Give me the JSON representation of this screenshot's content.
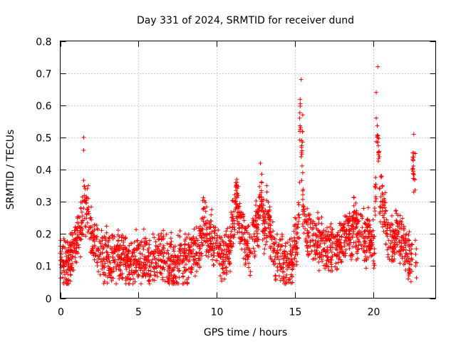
{
  "chart_data": {
    "type": "scatter",
    "title": "Day 331 of 2024, SRMTID for receiver dund",
    "xlabel": "GPS time / hours",
    "ylabel": "SRMTID / TECUs",
    "xlim": [
      0,
      24
    ],
    "ylim": [
      0,
      0.8
    ],
    "xticks": [
      0,
      5,
      10,
      15,
      20
    ],
    "xtick_labels": [
      "0",
      "5",
      "10",
      "15",
      "20"
    ],
    "yticks": [
      0,
      0.1,
      0.2,
      0.3,
      0.4,
      0.5,
      0.6,
      0.7,
      0.8
    ],
    "ytick_labels": [
      "0",
      "0.1",
      "0.2",
      "0.3",
      "0.4",
      "0.5",
      "0.6",
      "0.7",
      "0.8"
    ],
    "grid": true,
    "marker": "+",
    "color": "#ff0000",
    "series": [
      {
        "name": "SRMTID",
        "x": [
          0.0,
          0.1,
          0.2,
          0.3,
          0.4,
          0.5,
          0.6,
          0.7,
          0.8,
          0.9,
          1.0,
          1.1,
          1.2,
          1.3,
          1.4,
          1.5,
          1.5,
          1.5,
          1.6,
          1.6,
          1.7,
          1.7,
          1.8,
          1.8,
          1.9,
          2.0,
          2.1,
          2.2,
          2.3,
          2.4,
          2.5,
          2.6,
          2.7,
          2.8,
          2.9,
          3.0,
          3.1,
          3.2,
          3.3,
          3.4,
          3.5,
          3.6,
          3.7,
          3.8,
          3.9,
          4.0,
          4.1,
          4.2,
          4.3,
          4.4,
          4.5,
          4.6,
          4.7,
          4.8,
          4.9,
          5.0,
          5.1,
          5.2,
          5.3,
          5.4,
          5.5,
          5.6,
          5.7,
          5.8,
          5.9,
          6.0,
          6.1,
          6.2,
          6.3,
          6.4,
          6.5,
          6.6,
          6.7,
          6.8,
          6.9,
          7.0,
          7.1,
          7.2,
          7.3,
          7.4,
          7.5,
          7.6,
          7.7,
          7.8,
          7.9,
          8.0,
          8.1,
          8.2,
          8.3,
          8.4,
          8.5,
          8.6,
          8.7,
          8.8,
          8.9,
          9.0,
          9.1,
          9.2,
          9.3,
          9.4,
          9.5,
          9.6,
          9.7,
          9.8,
          9.9,
          10.0,
          10.1,
          10.2,
          10.3,
          10.4,
          10.5,
          10.6,
          10.7,
          10.8,
          10.9,
          11.0,
          11.1,
          11.2,
          11.3,
          11.4,
          11.5,
          11.6,
          11.7,
          11.8,
          11.9,
          12.0,
          12.1,
          12.2,
          12.3,
          12.4,
          12.5,
          12.6,
          12.7,
          12.8,
          12.9,
          13.0,
          13.1,
          13.2,
          13.3,
          13.4,
          13.5,
          13.6,
          13.7,
          13.8,
          13.9,
          14.0,
          14.1,
          14.2,
          14.3,
          14.4,
          14.5,
          14.6,
          14.7,
          14.8,
          14.9,
          15.0,
          15.1,
          15.1,
          15.2,
          15.2,
          15.3,
          15.3,
          15.4,
          15.4,
          15.5,
          15.5,
          15.6,
          15.7,
          15.8,
          15.9,
          16.0,
          16.1,
          16.2,
          16.3,
          16.4,
          16.5,
          16.6,
          16.7,
          16.8,
          16.9,
          17.0,
          17.1,
          17.2,
          17.3,
          17.4,
          17.5,
          17.6,
          17.7,
          17.8,
          17.9,
          18.0,
          18.1,
          18.2,
          18.3,
          18.4,
          18.5,
          18.6,
          18.7,
          18.8,
          18.9,
          19.0,
          19.1,
          19.2,
          19.3,
          19.4,
          19.5,
          19.6,
          19.7,
          19.8,
          19.9,
          20.0,
          20.0,
          20.1,
          20.1,
          20.2,
          20.2,
          20.3,
          20.3,
          20.4,
          20.4,
          20.5,
          20.5,
          20.6,
          20.6,
          20.7,
          20.7,
          20.8,
          20.8,
          20.9,
          21.0,
          21.1,
          21.2,
          21.3,
          21.4,
          21.5,
          21.6,
          21.7,
          21.8,
          21.9,
          22.0,
          22.1,
          22.2,
          22.3,
          22.4,
          22.5,
          22.5,
          22.6,
          22.6,
          22.7,
          22.7,
          22.8
        ],
        "y": [
          0.14,
          0.12,
          0.16,
          0.11,
          0.13,
          0.1,
          0.12,
          0.15,
          0.13,
          0.17,
          0.18,
          0.21,
          0.19,
          0.22,
          0.24,
          0.28,
          0.46,
          0.5,
          0.3,
          0.34,
          0.26,
          0.31,
          0.27,
          0.35,
          0.22,
          0.2,
          0.18,
          0.16,
          0.19,
          0.15,
          0.13,
          0.17,
          0.14,
          0.12,
          0.18,
          0.16,
          0.13,
          0.11,
          0.15,
          0.14,
          0.12,
          0.16,
          0.18,
          0.13,
          0.11,
          0.14,
          0.12,
          0.15,
          0.13,
          0.1,
          0.12,
          0.14,
          0.11,
          0.13,
          0.15,
          0.12,
          0.14,
          0.11,
          0.16,
          0.13,
          0.12,
          0.15,
          0.1,
          0.14,
          0.12,
          0.13,
          0.11,
          0.16,
          0.14,
          0.12,
          0.15,
          0.13,
          0.11,
          0.14,
          0.1,
          0.12,
          0.13,
          0.09,
          0.11,
          0.1,
          0.13,
          0.12,
          0.14,
          0.11,
          0.15,
          0.13,
          0.12,
          0.14,
          0.16,
          0.13,
          0.15,
          0.17,
          0.14,
          0.18,
          0.16,
          0.21,
          0.25,
          0.28,
          0.23,
          0.2,
          0.18,
          0.22,
          0.19,
          0.17,
          0.21,
          0.18,
          0.16,
          0.19,
          0.14,
          0.12,
          0.15,
          0.17,
          0.13,
          0.16,
          0.19,
          0.22,
          0.27,
          0.3,
          0.36,
          0.28,
          0.25,
          0.22,
          0.2,
          0.18,
          0.21,
          0.17,
          0.15,
          0.19,
          0.23,
          0.2,
          0.24,
          0.22,
          0.28,
          0.42,
          0.3,
          0.25,
          0.21,
          0.35,
          0.27,
          0.23,
          0.19,
          0.17,
          0.15,
          0.14,
          0.13,
          0.12,
          0.16,
          0.14,
          0.11,
          0.13,
          0.09,
          0.11,
          0.14,
          0.12,
          0.16,
          0.18,
          0.2,
          0.17,
          0.23,
          0.22,
          0.36,
          0.56,
          0.68,
          0.44,
          0.57,
          0.39,
          0.27,
          0.24,
          0.21,
          0.19,
          0.22,
          0.18,
          0.2,
          0.17,
          0.19,
          0.21,
          0.16,
          0.18,
          0.2,
          0.17,
          0.19,
          0.15,
          0.18,
          0.16,
          0.2,
          0.19,
          0.17,
          0.15,
          0.18,
          0.21,
          0.19,
          0.22,
          0.18,
          0.2,
          0.24,
          0.21,
          0.19,
          0.23,
          0.27,
          0.22,
          0.2,
          0.24,
          0.26,
          0.22,
          0.19,
          0.17,
          0.22,
          0.2,
          0.18,
          0.16,
          0.21,
          0.19,
          0.14,
          0.28,
          0.56,
          0.64,
          0.5,
          0.72,
          0.44,
          0.34,
          0.3,
          0.38,
          0.35,
          0.28,
          0.25,
          0.31,
          0.27,
          0.23,
          0.2,
          0.18,
          0.22,
          0.19,
          0.16,
          0.21,
          0.24,
          0.2,
          0.18,
          0.23,
          0.19,
          0.17,
          0.15,
          0.13,
          0.16,
          0.14,
          0.12,
          0.4,
          0.51,
          0.33,
          0.45,
          0.18,
          0.11
        ],
        "cloud": {
          "n": 2200,
          "x_step_hours": 0.01
        }
      }
    ]
  }
}
